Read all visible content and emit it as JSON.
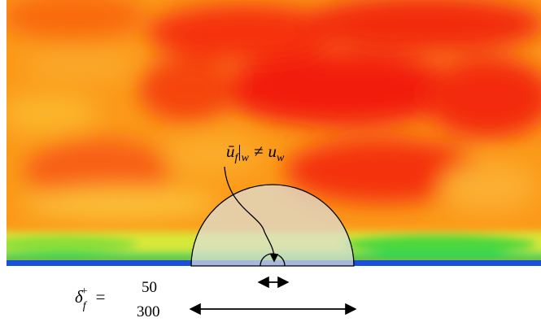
{
  "annotation": {
    "parts": [
      "ū",
      "f",
      "|",
      "w",
      "≠",
      "u",
      "w"
    ]
  },
  "scale": {
    "symbol": [
      "δ",
      "f",
      "+",
      "="
    ],
    "widths": [
      50,
      300
    ]
  }
}
